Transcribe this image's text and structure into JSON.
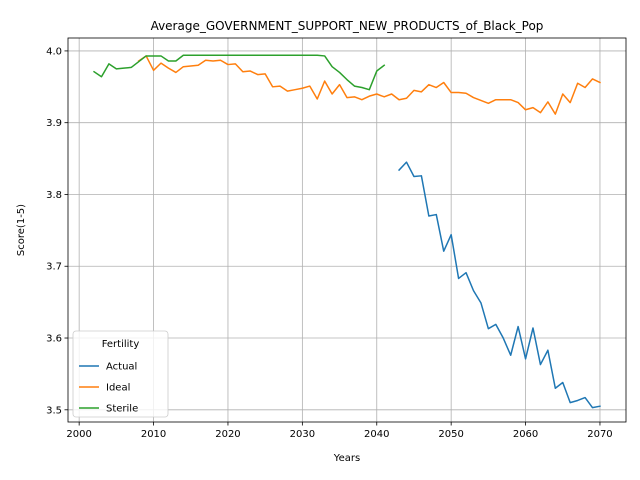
{
  "chart_data": {
    "type": "line",
    "title": "Average_GOVERNMENT_SUPPORT_NEW_PRODUCTS_of_Black_Pop",
    "xlabel": "Years",
    "ylabel": "Score(1-5)",
    "xlim": [
      1998.5,
      2073.5
    ],
    "ylim": [
      3.483,
      4.018
    ],
    "xticks": [
      2000,
      2010,
      2020,
      2030,
      2040,
      2050,
      2060,
      2070
    ],
    "yticks": [
      3.5,
      3.6,
      3.7,
      3.8,
      3.9,
      4.0
    ],
    "ytick_labels": [
      "3.5",
      "3.6",
      "3.7",
      "3.8",
      "3.9",
      "4.0"
    ],
    "grid": true,
    "legend": {
      "title": "Fertility",
      "placement": "lower-left"
    },
    "series": [
      {
        "name": "Actual",
        "color": "#1f77b4",
        "x": [
          2043,
          2044,
          2045,
          2046,
          2047,
          2048,
          2049,
          2050,
          2051,
          2052,
          2053,
          2054,
          2055,
          2056,
          2057,
          2058,
          2059,
          2060,
          2061,
          2062,
          2063,
          2064,
          2065,
          2066,
          2067,
          2068,
          2069,
          2070
        ],
        "y": [
          3.834,
          3.845,
          3.825,
          3.826,
          3.77,
          3.772,
          3.721,
          3.744,
          3.683,
          3.691,
          3.666,
          3.649,
          3.613,
          3.619,
          3.6,
          3.576,
          3.616,
          3.571,
          3.614,
          3.563,
          3.583,
          3.53,
          3.538,
          3.51,
          3.513,
          3.517,
          3.503,
          3.505
        ]
      },
      {
        "name": "Ideal",
        "color": "#ff7f0e",
        "x": [
          2008,
          2009,
          2010,
          2011,
          2012,
          2013,
          2014,
          2015,
          2016,
          2017,
          2018,
          2019,
          2020,
          2021,
          2022,
          2023,
          2024,
          2025,
          2026,
          2027,
          2028,
          2029,
          2030,
          2031,
          2032,
          2033,
          2034,
          2035,
          2036,
          2037,
          2038,
          2039,
          2040,
          2041,
          2042,
          2043,
          2044,
          2045,
          2046,
          2047,
          2048,
          2049,
          2050,
          2051,
          2052,
          2053,
          2054,
          2055,
          2056,
          2057,
          2058,
          2059,
          2060,
          2061,
          2062,
          2063,
          2064,
          2065,
          2066,
          2067,
          2068,
          2069,
          2070
        ],
        "y": [
          3.986,
          3.993,
          3.973,
          3.983,
          3.976,
          3.97,
          3.978,
          3.979,
          3.98,
          3.987,
          3.986,
          3.987,
          3.981,
          3.982,
          3.971,
          3.972,
          3.967,
          3.968,
          3.95,
          3.951,
          3.944,
          3.946,
          3.948,
          3.951,
          3.933,
          3.958,
          3.94,
          3.953,
          3.935,
          3.936,
          3.932,
          3.937,
          3.94,
          3.936,
          3.94,
          3.932,
          3.934,
          3.945,
          3.943,
          3.953,
          3.949,
          3.956,
          3.942,
          3.942,
          3.941,
          3.935,
          3.931,
          3.927,
          3.932,
          3.932,
          3.932,
          3.928,
          3.918,
          3.921,
          3.914,
          3.929,
          3.912,
          3.94,
          3.928,
          3.955,
          3.949,
          3.961,
          3.956
        ]
      },
      {
        "name": "Sterile",
        "color": "#2ca02c",
        "x": [
          2002,
          2003,
          2004,
          2005,
          2006,
          2007,
          2008,
          2009,
          2010,
          2011,
          2012,
          2013,
          2014,
          2015,
          2020,
          2025,
          2030,
          2031,
          2032,
          2033,
          2034,
          2035,
          2036,
          2037,
          2038,
          2039,
          2040,
          2041
        ],
        "y": [
          3.971,
          3.964,
          3.982,
          3.975,
          3.976,
          3.977,
          3.985,
          3.993,
          3.993,
          3.993,
          3.986,
          3.986,
          3.994,
          3.994,
          3.994,
          3.994,
          3.994,
          3.994,
          3.994,
          3.993,
          3.978,
          3.97,
          3.96,
          3.951,
          3.949,
          3.946,
          3.972,
          3.98
        ]
      }
    ]
  }
}
